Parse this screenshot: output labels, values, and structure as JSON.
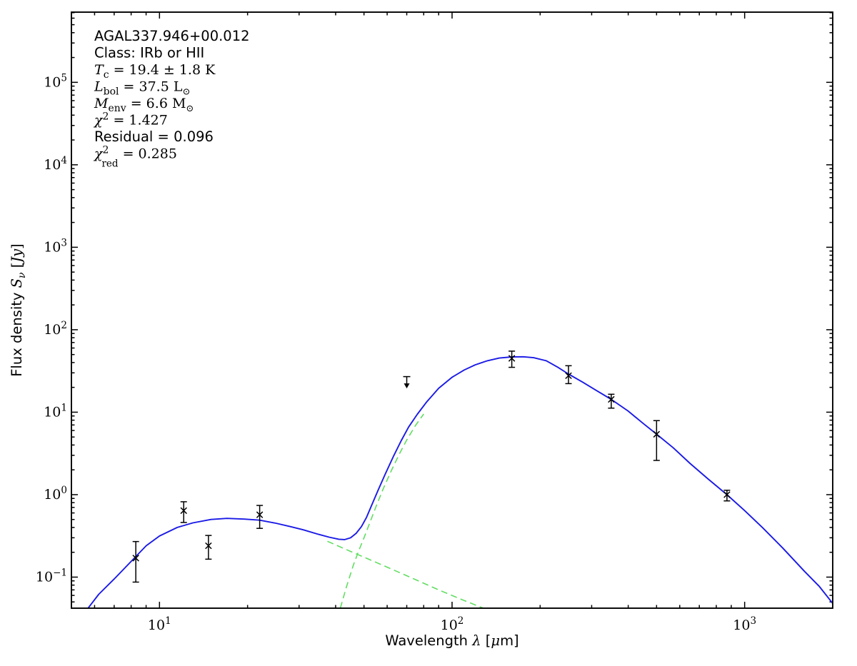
{
  "annotation": {
    "x": 132,
    "y_start": 57,
    "line_step": 23.5,
    "source_name": "AGAL337.946+00.012",
    "class_label": "Class: IRb or HII",
    "temperature": "19.4 ± 1.8 K",
    "luminosity": "37.5 L☉",
    "envelope_mass": "6.6 M☉",
    "chi2": "1.427",
    "residual": "0.096",
    "chi2_red": "0.285",
    "lines": [
      {
        "parts": [
          {
            "t": "AGAL337.946+00.012",
            "f": "sans",
            "s": 19.5
          }
        ]
      },
      {
        "parts": [
          {
            "t": "Class: IRb or HII",
            "f": "sans",
            "s": 19.5
          }
        ]
      },
      {
        "parts": [
          {
            "t": "T",
            "f": "mi",
            "s": 19
          },
          {
            "t": "c",
            "f": "mr",
            "s": 14,
            "dy": 5
          },
          {
            "t": " = 19.4 ± 1.8 K",
            "f": "mr",
            "s": 19,
            "dy": -5
          }
        ]
      },
      {
        "parts": [
          {
            "t": "L",
            "f": "mi",
            "s": 19
          },
          {
            "t": "bol",
            "f": "mr",
            "s": 14,
            "dy": 5
          },
          {
            "t": " = 37.5 L",
            "f": "mr",
            "s": 19,
            "dy": -5
          },
          {
            "t": "⊙",
            "f": "mr",
            "s": 13,
            "dy": 5
          }
        ]
      },
      {
        "parts": [
          {
            "t": "M",
            "f": "mi",
            "s": 19
          },
          {
            "t": "env",
            "f": "mr",
            "s": 14,
            "dy": 5
          },
          {
            "t": " = 6.6 M",
            "f": "mr",
            "s": 19,
            "dy": -5
          },
          {
            "t": "⊙",
            "f": "mr",
            "s": 13,
            "dy": 5
          }
        ]
      },
      {
        "parts": [
          {
            "t": "χ",
            "f": "mi",
            "s": 19
          },
          {
            "t": "2",
            "f": "mr",
            "s": 14,
            "dy": -7
          },
          {
            "t": " = 1.427",
            "f": "mr",
            "s": 19,
            "dy": 7
          }
        ]
      },
      {
        "parts": [
          {
            "t": "Residual = 0.096",
            "f": "sans",
            "s": 19.5
          }
        ]
      },
      {
        "parts": [
          {
            "t": "χ",
            "f": "mi",
            "s": 19
          },
          {
            "t": "2",
            "f": "mr",
            "s": 14,
            "dy": -7
          },
          {
            "t": "red",
            "f": "mr",
            "s": 13.5,
            "dx": -10,
            "dy": 19
          },
          {
            "t": " = 0.285",
            "f": "mr",
            "s": 19,
            "dy": -12
          }
        ]
      }
    ]
  },
  "chart_data": {
    "type": "line",
    "title": "",
    "xlabel": "Wavelength λ [μm]",
    "ylabel": "Flux density Sν [Jy]",
    "x_scale": "log",
    "y_scale": "log",
    "xlim": [
      5,
      2000
    ],
    "ylim": [
      0.042,
      710000
    ],
    "grid": false,
    "legend_position": "none",
    "x_major_ticks": [
      10,
      100,
      1000
    ],
    "y_major_ticks": [
      0.1,
      1,
      10,
      100,
      1000,
      10000,
      100000
    ],
    "colors": {
      "total_fit": "#1a1ae6",
      "components": "#62dd62",
      "data": "#000000",
      "frame": "#000000"
    },
    "series": [
      {
        "name": "total-model-fit",
        "color": "#1a1ae6",
        "style": "solid",
        "points": [
          [
            5.7,
            0.042
          ],
          [
            6.2,
            0.062
          ],
          [
            7,
            0.095
          ],
          [
            8,
            0.155
          ],
          [
            9,
            0.24
          ],
          [
            10,
            0.315
          ],
          [
            11.5,
            0.4
          ],
          [
            13,
            0.455
          ],
          [
            15,
            0.5
          ],
          [
            17,
            0.515
          ],
          [
            19.5,
            0.505
          ],
          [
            22,
            0.49
          ],
          [
            25,
            0.45
          ],
          [
            28,
            0.41
          ],
          [
            31,
            0.375
          ],
          [
            35,
            0.33
          ],
          [
            38,
            0.305
          ],
          [
            41,
            0.288
          ],
          [
            43,
            0.285
          ],
          [
            45,
            0.3
          ],
          [
            47,
            0.34
          ],
          [
            49,
            0.41
          ],
          [
            51,
            0.53
          ],
          [
            53,
            0.73
          ],
          [
            56,
            1.15
          ],
          [
            59,
            1.75
          ],
          [
            63,
            2.9
          ],
          [
            67,
            4.5
          ],
          [
            71,
            6.6
          ],
          [
            76,
            9.4
          ],
          [
            82,
            13.4
          ],
          [
            90,
            19.5
          ],
          [
            100,
            26.5
          ],
          [
            110,
            32.5
          ],
          [
            120,
            37.5
          ],
          [
            132,
            42
          ],
          [
            145,
            45.3
          ],
          [
            160,
            46.8
          ],
          [
            175,
            47.0
          ],
          [
            190,
            45.8
          ],
          [
            210,
            42
          ],
          [
            230,
            35
          ],
          [
            250,
            29
          ],
          [
            280,
            23
          ],
          [
            310,
            18.5
          ],
          [
            350,
            14.3
          ],
          [
            400,
            10.3
          ],
          [
            450,
            7.3
          ],
          [
            500,
            5.4
          ],
          [
            570,
            3.7
          ],
          [
            650,
            2.4
          ],
          [
            750,
            1.55
          ],
          [
            870,
            1.0
          ],
          [
            1000,
            0.64
          ],
          [
            1150,
            0.4
          ],
          [
            1350,
            0.225
          ],
          [
            1600,
            0.118
          ],
          [
            1800,
            0.077
          ],
          [
            2000,
            0.048
          ]
        ]
      },
      {
        "name": "cold-greybody-component",
        "color": "#62dd62",
        "style": "dashed",
        "points": [
          [
            41.5,
            0.042
          ],
          [
            43.5,
            0.075
          ],
          [
            46,
            0.14
          ],
          [
            48,
            0.21
          ],
          [
            50,
            0.3
          ],
          [
            52.5,
            0.47
          ],
          [
            55,
            0.72
          ],
          [
            58,
            1.15
          ],
          [
            62,
            1.95
          ],
          [
            66,
            3.1
          ],
          [
            70,
            4.6
          ],
          [
            75,
            6.9
          ],
          [
            80,
            9.5
          ]
        ]
      },
      {
        "name": "warm-component",
        "color": "#62dd62",
        "style": "dashed",
        "points": [
          [
            37.5,
            0.272
          ],
          [
            45,
            0.205
          ],
          [
            55,
            0.151
          ],
          [
            70,
            0.104
          ],
          [
            90,
            0.07
          ],
          [
            110,
            0.052
          ],
          [
            128,
            0.042
          ]
        ]
      }
    ],
    "data_points": [
      {
        "wavelength_um": 8.3,
        "flux_jy": 0.17,
        "flux_hi": 0.27,
        "flux_lo": 0.087
      },
      {
        "wavelength_um": 12.1,
        "flux_jy": 0.64,
        "flux_hi": 0.82,
        "flux_lo": 0.46
      },
      {
        "wavelength_um": 14.7,
        "flux_jy": 0.24,
        "flux_hi": 0.32,
        "flux_lo": 0.165
      },
      {
        "wavelength_um": 22.0,
        "flux_jy": 0.57,
        "flux_hi": 0.74,
        "flux_lo": 0.39
      },
      {
        "wavelength_um": 160,
        "flux_jy": 45,
        "flux_hi": 55,
        "flux_lo": 35
      },
      {
        "wavelength_um": 250,
        "flux_jy": 27.7,
        "flux_hi": 36.6,
        "flux_lo": 22.2
      },
      {
        "wavelength_um": 350,
        "flux_jy": 14.3,
        "flux_hi": 16.5,
        "flux_lo": 11.2
      },
      {
        "wavelength_um": 500,
        "flux_jy": 5.4,
        "flux_hi": 7.9,
        "flux_lo": 2.6
      },
      {
        "wavelength_um": 870,
        "flux_jy": 1.0,
        "flux_hi": 1.13,
        "flux_lo": 0.84
      }
    ],
    "upper_limits": [
      {
        "wavelength_um": 70,
        "flux_jy": 27
      }
    ],
    "xlabel_parts": [
      {
        "t": "Wavelength ",
        "f": "sans",
        "s": 19.5
      },
      {
        "t": "λ",
        "f": "mi",
        "s": 19.5
      },
      {
        "t": " [",
        "f": "sans",
        "s": 19.5
      },
      {
        "t": "μ",
        "f": "mi",
        "s": 19.5
      },
      {
        "t": "m]",
        "f": "sans",
        "s": 19.5
      }
    ],
    "ylabel_parts": [
      {
        "t": "Flux density ",
        "f": "sans",
        "s": 19.5
      },
      {
        "t": "S",
        "f": "mi",
        "s": 19.5
      },
      {
        "t": "ν",
        "f": "mi",
        "s": 14,
        "dy": 5
      },
      {
        "t": " [",
        "f": "mr",
        "s": 19.5,
        "dy": -5
      },
      {
        "t": "Jy",
        "f": "mi",
        "s": 19.5
      },
      {
        "t": "]",
        "f": "mr",
        "s": 19.5
      }
    ]
  }
}
